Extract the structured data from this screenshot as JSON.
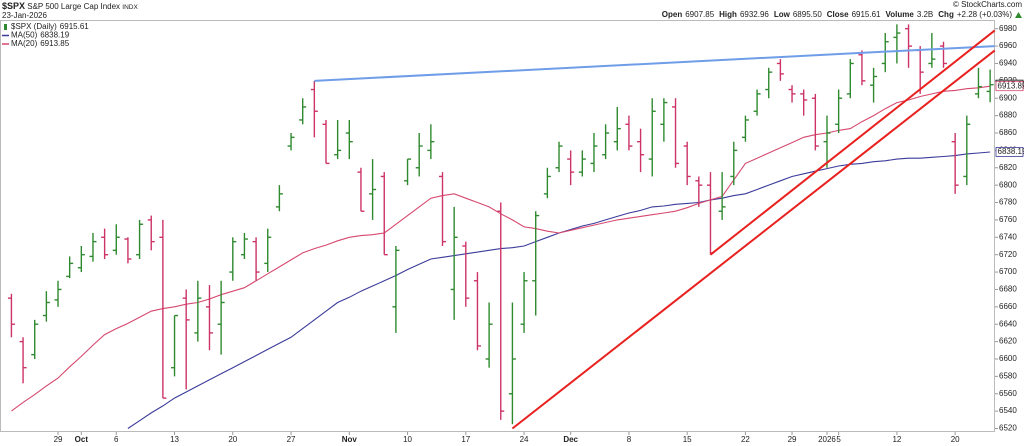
{
  "header": {
    "symbol": "$SPX",
    "name": "S&P 500 Large Cap Index",
    "exchange": "INDX",
    "date": "23-Jan-2026",
    "credit": "© StockCharts.com",
    "quote": [
      {
        "label": "Open",
        "value": "6907.85"
      },
      {
        "label": "High",
        "value": "6932.96"
      },
      {
        "label": "Low",
        "value": "6895.50"
      },
      {
        "label": "Close",
        "value": "6915.61"
      },
      {
        "label": "Volume",
        "value": "3.2B"
      },
      {
        "label": "Chg",
        "value": "+2.28 (+0.03%)"
      }
    ]
  },
  "chart_data": {
    "type": "ohlc",
    "categories": [
      null,
      null,
      null,
      null,
      "29",
      null,
      "Oct",
      null,
      null,
      "6",
      null,
      null,
      null,
      null,
      "13",
      null,
      null,
      null,
      null,
      "20",
      null,
      null,
      null,
      null,
      "27",
      null,
      null,
      null,
      null,
      "Nov",
      null,
      null,
      null,
      null,
      "10",
      null,
      null,
      null,
      null,
      "17",
      null,
      null,
      null,
      null,
      "24",
      null,
      null,
      null,
      "Dec",
      null,
      null,
      null,
      null,
      "8",
      null,
      null,
      null,
      null,
      "15",
      null,
      null,
      null,
      null,
      "22",
      null,
      null,
      null,
      "29",
      null,
      null,
      "2026",
      "5",
      null,
      null,
      null,
      null,
      "12",
      null,
      null,
      null,
      null,
      "20",
      null,
      null,
      null
    ],
    "series": [
      {
        "name": "$SPX (Daily)",
        "up_color": "#2f8a2f",
        "down_color": "#cc3366",
        "open": [
          6670,
          6620,
          6605,
          6650,
          6668,
          6695,
          6705,
          6718,
          6740,
          6725,
          6738,
          6720,
          6760,
          6740,
          6590,
          6670,
          6630,
          6660,
          6640,
          6700,
          6720,
          6735,
          6710,
          6775,
          6845,
          6875,
          6910,
          6870,
          6835,
          6860,
          6815,
          6790,
          6810,
          6660,
          6805,
          6820,
          6840,
          6810,
          6680,
          6730,
          6690,
          6600,
          6770,
          6560,
          6640,
          6690,
          6790,
          6820,
          6830,
          6815,
          6825,
          6835,
          6850,
          6870,
          6850,
          6830,
          6870,
          6890,
          6845,
          6805,
          6800,
          6770,
          6810,
          6855,
          6885,
          6910,
          6940,
          6910,
          6905,
          6900,
          6850,
          6870,
          6905,
          6950,
          6915,
          6940,
          6970,
          6980,
          6955,
          6940,
          6960,
          6850,
          6810,
          6905,
          6907.85
        ],
        "high": [
          6675,
          6625,
          6645,
          6678,
          6690,
          6718,
          6730,
          6745,
          6750,
          6755,
          6740,
          6760,
          6765,
          6760,
          6650,
          6680,
          6690,
          6685,
          6690,
          6740,
          6745,
          6740,
          6750,
          6800,
          6860,
          6900,
          6920,
          6875,
          6875,
          6875,
          6820,
          6830,
          6815,
          6730,
          6830,
          6860,
          6870,
          6815,
          6775,
          6735,
          6700,
          6665,
          6780,
          6665,
          6700,
          6770,
          6820,
          6850,
          6840,
          6840,
          6860,
          6870,
          6890,
          6880,
          6865,
          6900,
          6900,
          6900,
          6850,
          6810,
          6815,
          6815,
          6850,
          6880,
          6910,
          6935,
          6945,
          6915,
          6910,
          6905,
          6880,
          6910,
          6945,
          6955,
          6935,
          6975,
          6985,
          6985,
          6960,
          6975,
          6965,
          6860,
          6880,
          6935,
          6932.96
        ],
        "low": [
          6625,
          6572,
          6600,
          6643,
          6660,
          6693,
          6700,
          6712,
          6715,
          6720,
          6710,
          6715,
          6725,
          6555,
          6580,
          6565,
          6620,
          6610,
          6605,
          6690,
          6715,
          6690,
          6700,
          6770,
          6840,
          6870,
          6855,
          6825,
          6830,
          6830,
          6770,
          6760,
          6720,
          6630,
          6800,
          6810,
          6830,
          6730,
          6645,
          6660,
          6610,
          6590,
          6530,
          6525,
          6630,
          6650,
          6785,
          6815,
          6800,
          6810,
          6815,
          6830,
          6840,
          6840,
          6815,
          6810,
          6850,
          6820,
          6800,
          6775,
          6720,
          6760,
          6800,
          6850,
          6880,
          6900,
          6920,
          6895,
          6880,
          6840,
          6820,
          6860,
          6900,
          6915,
          6895,
          6930,
          6940,
          6935,
          6905,
          6935,
          6935,
          6790,
          6800,
          6900,
          6895.5
        ],
        "close": [
          6640,
          6590,
          6640,
          6665,
          6680,
          6710,
          6720,
          6735,
          6720,
          6740,
          6715,
          6755,
          6735,
          6555,
          6650,
          6645,
          6670,
          6630,
          6665,
          6735,
          6738,
          6700,
          6740,
          6790,
          6855,
          6890,
          6885,
          6825,
          6840,
          6850,
          6770,
          6795,
          6720,
          6725,
          6830,
          6845,
          6850,
          6735,
          6740,
          6670,
          6615,
          6640,
          6540,
          6600,
          6690,
          6765,
          6810,
          6845,
          6815,
          6830,
          6845,
          6860,
          6865,
          6845,
          6835,
          6885,
          6895,
          6825,
          6810,
          6800,
          6722,
          6775,
          6840,
          6875,
          6905,
          6930,
          6928,
          6905,
          6898,
          6845,
          6860,
          6900,
          6940,
          6920,
          6925,
          6965,
          6975,
          6960,
          6930,
          6945,
          6940,
          6800,
          6870,
          6913.33,
          6915.61
        ]
      },
      {
        "name": "MA(50)",
        "color": "#3b3b9b",
        "values": [
          null,
          null,
          null,
          null,
          null,
          null,
          null,
          null,
          null,
          null,
          6520,
          6529,
          6538,
          6546,
          6555,
          6562,
          6569,
          6576,
          6583,
          6590,
          6597,
          6604,
          6611,
          6618,
          6625,
          6635,
          6645,
          6655,
          6665,
          6671,
          6678,
          6684,
          6690,
          6696,
          6703,
          6709,
          6715,
          6717,
          6719,
          6721,
          6723,
          6725,
          6727,
          6728,
          6730,
          6735,
          6740,
          6745,
          6749,
          6753,
          6756,
          6760,
          6764,
          6768,
          6771,
          6775,
          6776,
          6778,
          6779,
          6780,
          6783,
          6785,
          6788,
          6790,
          6795,
          6800,
          6805,
          6810,
          6813,
          6816,
          6819,
          6822,
          6824,
          6825,
          6827,
          6828,
          6830,
          6831,
          6831,
          6832,
          6833,
          6834,
          6836,
          6837,
          6838.19
        ]
      },
      {
        "name": "MA(20)",
        "color": "#d6496f",
        "values": [
          6540,
          6550,
          6559,
          6569,
          6578,
          6591,
          6603,
          6616,
          6628,
          6635,
          6641,
          6648,
          6655,
          6658,
          6660,
          6663,
          6665,
          6669,
          6674,
          6678,
          6682,
          6690,
          6698,
          6706,
          6714,
          6722,
          6727,
          6731,
          6736,
          6740,
          6742,
          6743,
          6745,
          6755,
          6765,
          6775,
          6785,
          6788,
          6790,
          6785,
          6780,
          6775,
          6767,
          6760,
          6752,
          6750,
          6747,
          6745,
          6748,
          6751,
          6754,
          6757,
          6760,
          6762,
          6764,
          6766,
          6768,
          6770,
          6774,
          6779,
          6783,
          6787,
          6806,
          6825,
          6831,
          6837,
          6843,
          6849,
          6855,
          6858,
          6860,
          6863,
          6865,
          6873,
          6880,
          6888,
          6895,
          6898,
          6902,
          6905,
          6908,
          6909,
          6911,
          6912,
          6913.85
        ]
      }
    ],
    "trendlines": [
      {
        "color": "#6f9de8",
        "x": [
          26,
          84.4
        ],
        "y": [
          6920,
          6960
        ]
      },
      {
        "color": "#e8211f",
        "x": [
          60,
          84.4
        ],
        "y": [
          6720,
          6978
        ]
      },
      {
        "color": "#e8211f",
        "x": [
          43,
          84.4
        ],
        "y": [
          6520,
          6955
        ]
      }
    ],
    "ylim": [
      6516,
      6990
    ],
    "yticks": [
      6520,
      6540,
      6560,
      6580,
      6600,
      6620,
      6640,
      6660,
      6680,
      6700,
      6720,
      6740,
      6760,
      6780,
      6800,
      6820,
      6840,
      6860,
      6880,
      6900,
      6920,
      6940,
      6960,
      6980
    ],
    "grid": false
  }
}
